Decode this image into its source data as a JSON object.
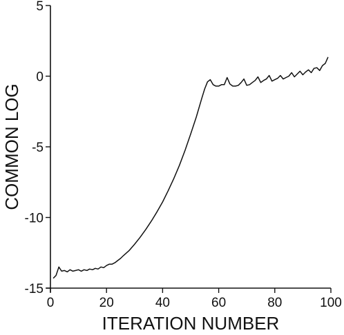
{
  "chart_data": {
    "type": "line",
    "title": "",
    "xlabel": "ITERATION NUMBER",
    "ylabel": "COMMON LOG",
    "xlim": [
      0,
      100
    ],
    "ylim": [
      -15,
      5
    ],
    "xticks": [
      0,
      20,
      40,
      60,
      80,
      100
    ],
    "yticks": [
      5,
      0,
      -5,
      -10,
      -15
    ],
    "grid": false,
    "line_color": "#111111",
    "series": [
      {
        "x": [
          1,
          2,
          3,
          4,
          5,
          6,
          7,
          8,
          9,
          10,
          11,
          12,
          13,
          14,
          15,
          16,
          17,
          18,
          19,
          20,
          21,
          22,
          23,
          24,
          25,
          26,
          28,
          30,
          32,
          34,
          36,
          38,
          40,
          42,
          44,
          46,
          48,
          50,
          52,
          54,
          55,
          56,
          57,
          58,
          59,
          60,
          61,
          62,
          63,
          64,
          65,
          66,
          67,
          68,
          69,
          70,
          71,
          72,
          73,
          74,
          75,
          76,
          77,
          78,
          79,
          80,
          81,
          82,
          83,
          84,
          85,
          86,
          87,
          88,
          89,
          90,
          91,
          92,
          93,
          94,
          95,
          96,
          97,
          98,
          99
        ],
        "y": [
          -14.3,
          -14.1,
          -13.5,
          -13.8,
          -13.75,
          -13.85,
          -13.7,
          -13.8,
          -13.75,
          -13.7,
          -13.8,
          -13.7,
          -13.75,
          -13.65,
          -13.7,
          -13.6,
          -13.65,
          -13.5,
          -13.55,
          -13.4,
          -13.3,
          -13.3,
          -13.2,
          -13.05,
          -12.9,
          -12.7,
          -12.35,
          -11.9,
          -11.4,
          -10.85,
          -10.25,
          -9.6,
          -8.9,
          -8.1,
          -7.25,
          -6.3,
          -5.25,
          -4.1,
          -2.9,
          -1.55,
          -0.9,
          -0.4,
          -0.25,
          -0.6,
          -0.7,
          -0.7,
          -0.6,
          -0.6,
          -0.1,
          -0.55,
          -0.7,
          -0.7,
          -0.65,
          -0.45,
          -0.2,
          -0.65,
          -0.6,
          -0.45,
          -0.3,
          -0.05,
          -0.45,
          -0.3,
          -0.2,
          0.05,
          -0.35,
          -0.25,
          -0.15,
          0.05,
          -0.2,
          -0.1,
          0.0,
          0.25,
          -0.05,
          0.15,
          0.35,
          0.1,
          0.3,
          0.45,
          0.25,
          0.55,
          0.6,
          0.4,
          0.75,
          0.9,
          1.35
        ]
      }
    ]
  }
}
